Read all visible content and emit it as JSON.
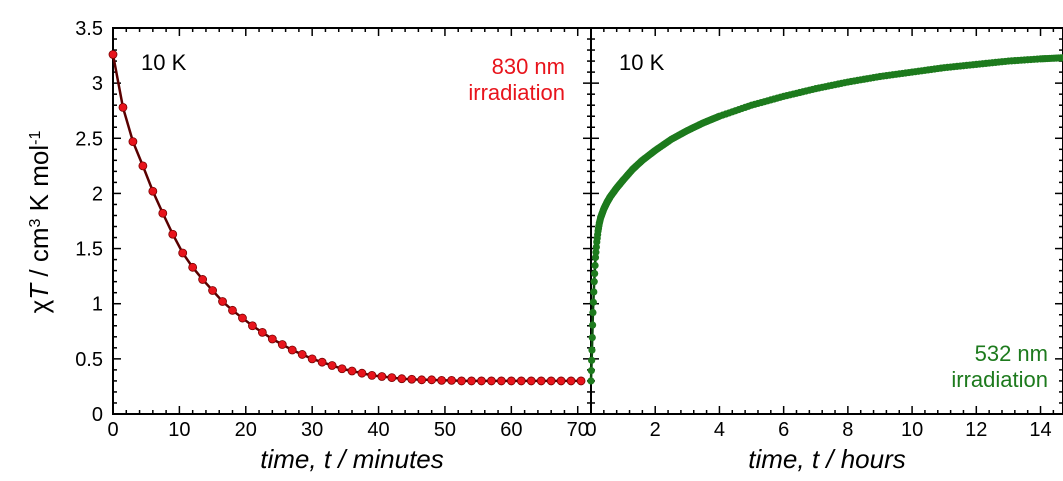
{
  "chart_data": [
    {
      "type": "scatter",
      "panel": "left",
      "title": "",
      "xlabel": "time, t / minutes",
      "ylabel_parts": [
        "χ",
        "T",
        " / cm",
        "3",
        " K mol",
        "-1"
      ],
      "xlim": [
        0,
        72
      ],
      "ylim": [
        0,
        3.5
      ],
      "x_ticks": [
        0,
        10,
        20,
        30,
        40,
        50,
        60,
        70
      ],
      "y_ticks": [
        0,
        0.5,
        1,
        1.5,
        2,
        2.5,
        3,
        3.5
      ],
      "y_tick_labels": [
        "0",
        "0.5",
        "1",
        "1.5",
        "2",
        "2.5",
        "3",
        "3.5"
      ],
      "annotation_temp": "10 K",
      "annotation_lines": [
        "830 nm",
        "irradiation"
      ],
      "marker_color": "#e8141c",
      "line_color": "#5a0000",
      "series": [
        {
          "x": [
            0,
            1.5,
            3,
            4.5,
            6,
            7.5,
            9,
            10.5,
            12,
            13.5,
            15,
            16.5,
            18,
            19.5,
            21,
            22.5,
            24,
            25.5,
            27,
            28.5,
            30,
            31.5,
            33,
            34.5,
            36,
            37.5,
            39,
            40.5,
            42,
            43.5,
            45,
            46.5,
            48,
            49.5,
            51,
            52.5,
            54,
            55.5,
            57,
            58.5,
            60,
            61.5,
            63,
            64.5,
            66,
            67.5,
            69,
            70.5
          ],
          "y": [
            3.26,
            2.78,
            2.47,
            2.25,
            2.02,
            1.82,
            1.63,
            1.46,
            1.33,
            1.22,
            1.12,
            1.02,
            0.94,
            0.87,
            0.8,
            0.74,
            0.68,
            0.63,
            0.58,
            0.54,
            0.5,
            0.47,
            0.44,
            0.41,
            0.39,
            0.37,
            0.35,
            0.34,
            0.33,
            0.32,
            0.315,
            0.31,
            0.31,
            0.305,
            0.305,
            0.3,
            0.3,
            0.3,
            0.3,
            0.3,
            0.3,
            0.3,
            0.3,
            0.3,
            0.3,
            0.3,
            0.3,
            0.3
          ]
        }
      ]
    },
    {
      "type": "scatter",
      "panel": "right",
      "title": "",
      "xlabel": "time, t / hours",
      "xlim": [
        0,
        14.7
      ],
      "ylim": [
        0,
        3.5
      ],
      "x_ticks": [
        0,
        2,
        4,
        6,
        8,
        10,
        12,
        14
      ],
      "annotation_temp": "10 K",
      "annotation_lines": [
        "532 nm",
        "irradiation"
      ],
      "marker_color": "#1d7a1d",
      "line_color": "#0e4a0e",
      "series": [
        {
          "x": [
            0,
            0.03,
            0.06,
            0.1,
            0.14,
            0.18,
            0.22,
            0.26,
            0.3,
            0.4,
            0.5,
            0.6,
            0.8,
            1.0,
            1.3,
            1.6,
            2.0,
            2.5,
            3.0,
            3.5,
            4.0,
            5.0,
            6.0,
            7.0,
            8.0,
            9.0,
            10.0,
            11.0,
            12.0,
            13.0,
            14.0,
            14.7
          ],
          "y": [
            0.3,
            0.58,
            0.92,
            1.2,
            1.42,
            1.56,
            1.66,
            1.73,
            1.78,
            1.86,
            1.92,
            1.97,
            2.05,
            2.12,
            2.22,
            2.3,
            2.39,
            2.49,
            2.57,
            2.64,
            2.7,
            2.8,
            2.88,
            2.95,
            3.01,
            3.06,
            3.1,
            3.14,
            3.17,
            3.2,
            3.22,
            3.23
          ]
        }
      ]
    }
  ]
}
